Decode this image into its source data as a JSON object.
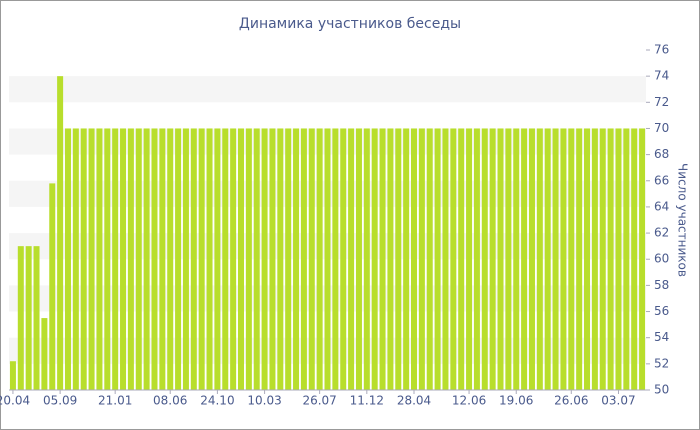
{
  "chart_data": {
    "type": "bar",
    "title": "Динамика участников беседы",
    "y_label": "Число участников",
    "categories": [
      "20.04",
      null,
      null,
      null,
      null,
      null,
      "05.09",
      null,
      null,
      null,
      null,
      null,
      null,
      "21.01",
      null,
      null,
      null,
      null,
      null,
      null,
      "08.06",
      null,
      null,
      null,
      null,
      null,
      "24.10",
      null,
      null,
      null,
      null,
      null,
      "10.03",
      null,
      null,
      null,
      null,
      null,
      null,
      "26.07",
      null,
      null,
      null,
      null,
      null,
      "11.12",
      null,
      null,
      null,
      null,
      null,
      "28.04",
      null,
      null,
      null,
      null,
      null,
      null,
      "12.06",
      null,
      null,
      null,
      null,
      null,
      "19.06",
      null,
      null,
      null,
      null,
      null,
      null,
      "26.06",
      null,
      null,
      null,
      null,
      null,
      "03.07",
      null,
      null,
      null
    ],
    "values": [
      52.2,
      61,
      61,
      61,
      55.5,
      65.8,
      74,
      70,
      70,
      70,
      70,
      70,
      70,
      70,
      70,
      70,
      70,
      70,
      70,
      70,
      70,
      70,
      70,
      70,
      70,
      70,
      70,
      70,
      70,
      70,
      70,
      70,
      70,
      70,
      70,
      70,
      70,
      70,
      70,
      70,
      70,
      70,
      70,
      70,
      70,
      70,
      70,
      70,
      70,
      70,
      70,
      70,
      70,
      70,
      70,
      70,
      70,
      70,
      70,
      70,
      70,
      70,
      70,
      70,
      70,
      70,
      70,
      70,
      70,
      70,
      70,
      70,
      70,
      70,
      70,
      70,
      70,
      70,
      70,
      70,
      70
    ],
    "color": "#b8de2c",
    "ylim": [
      50,
      76
    ],
    "yticks": [
      50,
      52,
      54,
      56,
      58,
      60,
      62,
      64,
      66,
      68,
      70,
      72,
      74,
      76
    ],
    "grid": true
  }
}
